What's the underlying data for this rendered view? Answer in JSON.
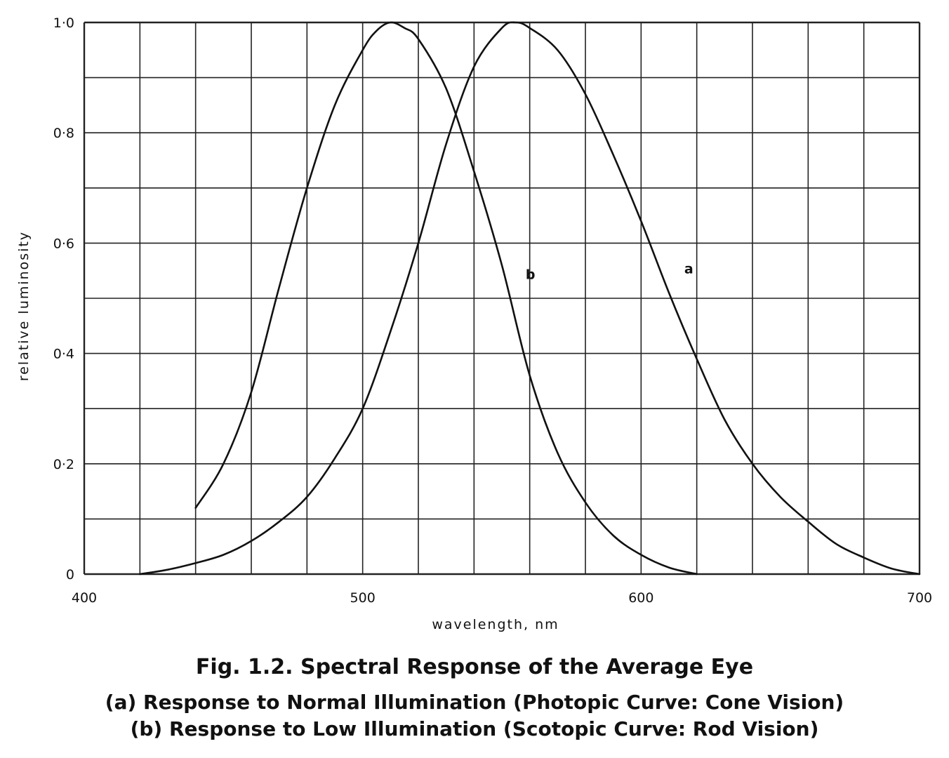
{
  "figure": {
    "title": "Fig. 1.2.  Spectral Response of the Average Eye",
    "caption_a": "(a) Response to Normal Illumination (Photopic Curve:  Cone Vision)",
    "caption_b": "(b) Response to Low Illumination (Scotopic Curve:  Rod Vision)"
  },
  "chart_data": {
    "type": "line",
    "title": "",
    "xlabel": "wavelength, nm",
    "ylabel": "relative luminosity",
    "xlim": [
      400,
      700
    ],
    "ylim": [
      0,
      1.0
    ],
    "x_tick_values": [
      400,
      500,
      600,
      700
    ],
    "x_tick_labels": [
      "400",
      "500",
      "600",
      "700"
    ],
    "y_tick_values": [
      0,
      0.2,
      0.4,
      0.6,
      0.8,
      1.0
    ],
    "y_tick_labels": [
      "0",
      "0·2",
      "0·4",
      "0·6",
      "0·8",
      "1·0"
    ],
    "grid": true,
    "grid_x_step": 20,
    "grid_y_step": 0.1,
    "line_color": "#111111",
    "series": [
      {
        "name": "a",
        "label_at": [
          612,
          0.54
        ],
        "x": [
          420,
          430,
          440,
          450,
          460,
          470,
          480,
          490,
          500,
          510,
          520,
          530,
          540,
          550,
          555,
          560,
          570,
          580,
          590,
          600,
          610,
          620,
          630,
          640,
          650,
          660,
          670,
          680,
          690,
          700
        ],
        "y": [
          0.0,
          0.008,
          0.02,
          0.035,
          0.06,
          0.095,
          0.14,
          0.21,
          0.3,
          0.44,
          0.6,
          0.78,
          0.92,
          0.99,
          1.0,
          0.99,
          0.95,
          0.87,
          0.76,
          0.64,
          0.51,
          0.39,
          0.28,
          0.2,
          0.14,
          0.095,
          0.055,
          0.03,
          0.01,
          0.0
        ]
      },
      {
        "name": "b",
        "label_at": [
          555,
          0.53
        ],
        "x": [
          440,
          450,
          460,
          470,
          480,
          490,
          500,
          505,
          510,
          515,
          520,
          530,
          540,
          550,
          560,
          570,
          580,
          590,
          600,
          610,
          620
        ],
        "y": [
          0.12,
          0.2,
          0.33,
          0.52,
          0.7,
          0.85,
          0.95,
          0.985,
          1.0,
          0.99,
          0.97,
          0.88,
          0.73,
          0.56,
          0.36,
          0.22,
          0.13,
          0.07,
          0.035,
          0.012,
          0.0
        ]
      }
    ]
  }
}
